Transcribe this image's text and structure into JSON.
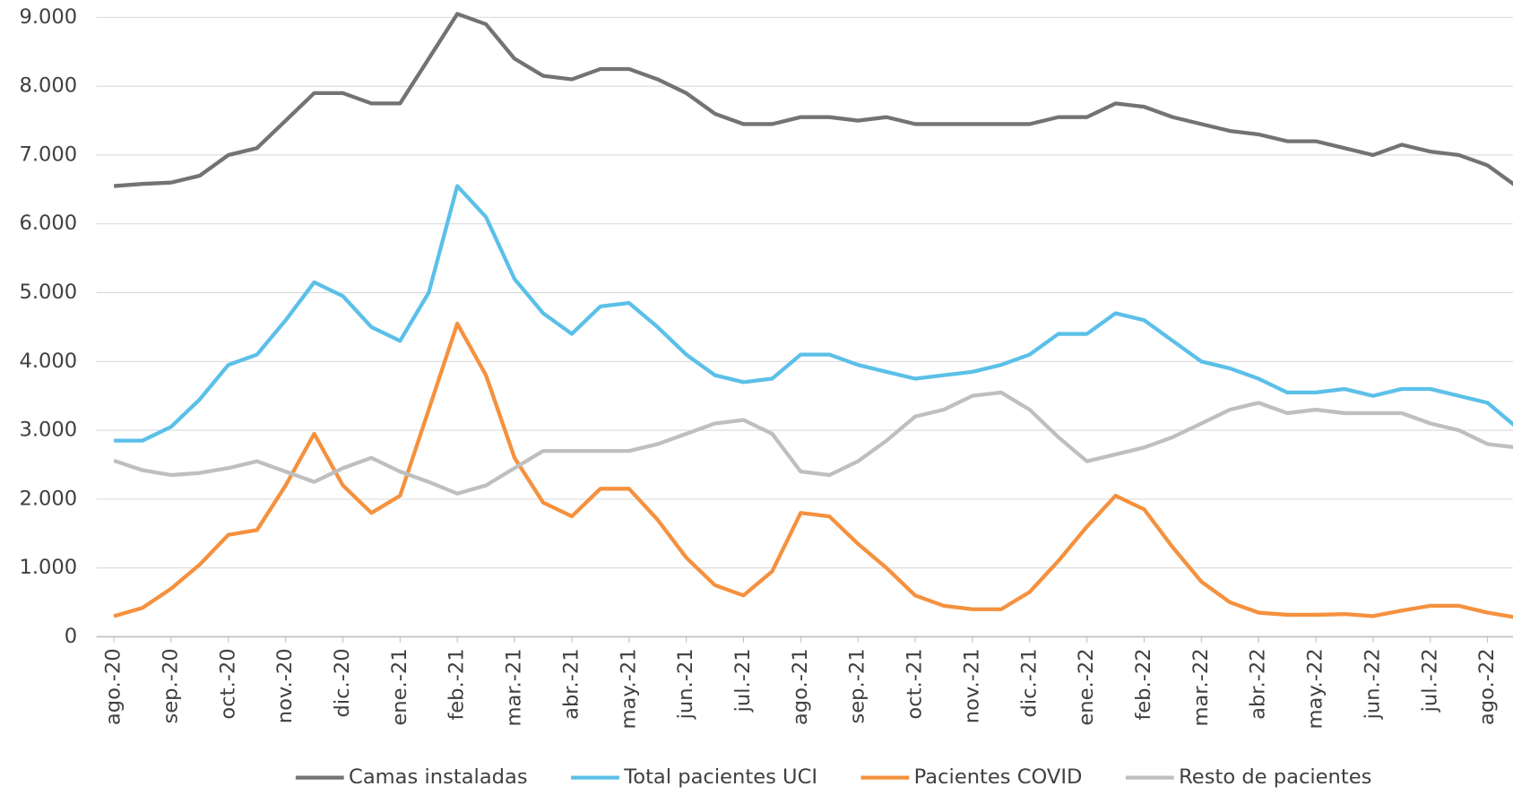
{
  "chart_data": {
    "type": "line",
    "categories": [
      "ago.-20",
      null,
      "sep.-20",
      null,
      "oct.-20",
      null,
      "nov.-20",
      null,
      "dic.-20",
      null,
      "ene.-21",
      null,
      "feb.-21",
      null,
      "mar.-21",
      null,
      "abr.-21",
      null,
      "may.-21",
      null,
      "jun.-21",
      null,
      "jul.-21",
      null,
      "ago.-21",
      null,
      "sep.-21",
      null,
      "oct.-21",
      null,
      "nov.-21",
      null,
      "dic.-21",
      null,
      "ene.-22",
      null,
      "feb.-22",
      null,
      "mar.-22",
      null,
      "abr.-22",
      null,
      "may.-22",
      null,
      "jun.-22",
      null,
      "jul.-22",
      null,
      "ago.-22",
      null
    ],
    "series": [
      {
        "name": "Camas instaladas",
        "color": "#737373",
        "values": [
          6550,
          6580,
          6600,
          6700,
          7000,
          7100,
          7500,
          7900,
          7900,
          7750,
          7750,
          8400,
          9050,
          8900,
          8400,
          8150,
          8100,
          8250,
          8250,
          8100,
          7900,
          7600,
          7450,
          7450,
          7550,
          7550,
          7500,
          7550,
          7450,
          7450,
          7450,
          7450,
          7450,
          7550,
          7550,
          7750,
          7700,
          7550,
          7450,
          7350,
          7300,
          7200,
          7200,
          7100,
          7000,
          7150,
          7050,
          7000,
          6850,
          6550
        ]
      },
      {
        "name": "Total pacientes UCI",
        "color": "#5bc0e8",
        "values": [
          2850,
          2850,
          3050,
          3450,
          3950,
          4100,
          4600,
          5150,
          4950,
          4500,
          4300,
          5000,
          6550,
          6100,
          5200,
          4700,
          4400,
          4800,
          4850,
          4500,
          4100,
          3800,
          3700,
          3750,
          4100,
          4100,
          3950,
          3850,
          3750,
          3800,
          3850,
          3950,
          4100,
          4400,
          4400,
          4700,
          4600,
          4300,
          4000,
          3900,
          3750,
          3550,
          3550,
          3600,
          3500,
          3600,
          3600,
          3500,
          3400,
          3050
        ]
      },
      {
        "name": "Pacientes COVID",
        "color": "#f5913e",
        "values": [
          300,
          420,
          700,
          1050,
          1480,
          1550,
          2200,
          2950,
          2200,
          1800,
          2050,
          3300,
          4550,
          3800,
          2600,
          1950,
          1750,
          2150,
          2150,
          1700,
          1150,
          750,
          600,
          950,
          1800,
          1750,
          1350,
          1000,
          600,
          450,
          400,
          400,
          650,
          1100,
          1600,
          2050,
          1850,
          1300,
          800,
          500,
          350,
          320,
          320,
          330,
          300,
          380,
          450,
          450,
          350,
          280
        ]
      },
      {
        "name": "Resto de pacientes",
        "color": "#bfbfbf",
        "values": [
          2560,
          2420,
          2350,
          2380,
          2450,
          2550,
          2400,
          2250,
          2450,
          2600,
          2400,
          2250,
          2080,
          2200,
          2450,
          2700,
          2700,
          2700,
          2700,
          2800,
          2950,
          3100,
          3150,
          2950,
          2400,
          2350,
          2550,
          2850,
          3200,
          3300,
          3500,
          3550,
          3300,
          2900,
          2550,
          2650,
          2750,
          2900,
          3100,
          3300,
          3400,
          3250,
          3300,
          3250,
          3250,
          3250,
          3100,
          3000,
          2800,
          2750
        ]
      }
    ],
    "ylim": [
      0,
      9000
    ],
    "yticks": [
      {
        "value": 0,
        "label": "0"
      },
      {
        "value": 1000,
        "label": "1.000"
      },
      {
        "value": 2000,
        "label": "2.000"
      },
      {
        "value": 3000,
        "label": "3.000"
      },
      {
        "value": 4000,
        "label": "4.000"
      },
      {
        "value": 5000,
        "label": "5.000"
      },
      {
        "value": 6000,
        "label": "6.000"
      },
      {
        "value": 7000,
        "label": "7.000"
      },
      {
        "value": 8000,
        "label": "8.000"
      },
      {
        "value": 9000,
        "label": "9.000"
      }
    ],
    "grid": true,
    "legend": "bottom"
  }
}
